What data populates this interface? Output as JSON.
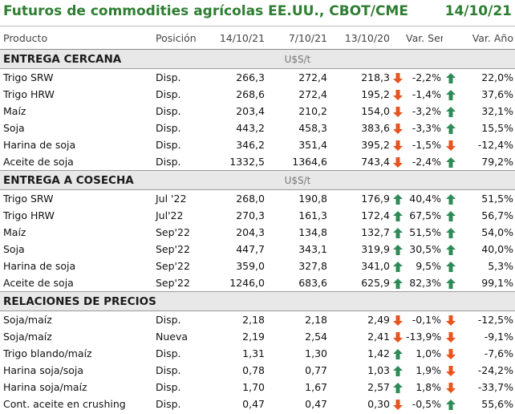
{
  "header": {
    "title": "Futuros de commodities agrícolas EE.UU., CBOT/CME",
    "date": "14/10/21"
  },
  "columns": [
    "Producto",
    "Posición",
    "14/10/21",
    "7/10/21",
    "13/10/20",
    "Var. Sem.",
    "Var. Año"
  ],
  "colors": {
    "up": "#2e8b57",
    "down": "#e8541e",
    "title": "#2e7d32"
  },
  "sections": [
    {
      "name": "ENTREGA CERCANA",
      "unit": "U$S/t",
      "rows": [
        {
          "product": "Trigo SRW",
          "position": "Disp.",
          "v1": "266,3",
          "v2": "272,4",
          "v3": "218,3",
          "a0": "down",
          "ws": "-2,2%",
          "a1": "up",
          "yr": "22,0%"
        },
        {
          "product": "Trigo HRW",
          "position": "Disp.",
          "v1": "268,6",
          "v2": "272,4",
          "v3": "195,2",
          "a0": "down",
          "ws": "-1,4%",
          "a1": "up",
          "yr": "37,6%"
        },
        {
          "product": "Maíz",
          "position": "Disp.",
          "v1": "203,4",
          "v2": "210,2",
          "v3": "154,0",
          "a0": "down",
          "ws": "-3,2%",
          "a1": "up",
          "yr": "32,1%"
        },
        {
          "product": "Soja",
          "position": "Disp.",
          "v1": "443,2",
          "v2": "458,3",
          "v3": "383,6",
          "a0": "down",
          "ws": "-3,3%",
          "a1": "up",
          "yr": "15,5%"
        },
        {
          "product": "Harina de soja",
          "position": "Disp.",
          "v1": "346,2",
          "v2": "351,4",
          "v3": "395,2",
          "a0": "down",
          "ws": "-1,5%",
          "a1": "down",
          "yr": "-12,4%"
        },
        {
          "product": "Aceite de soja",
          "position": "Disp.",
          "v1": "1332,5",
          "v2": "1364,6",
          "v3": "743,4",
          "a0": "down",
          "ws": "-2,4%",
          "a1": "up",
          "yr": "79,2%"
        }
      ]
    },
    {
      "name": "ENTREGA A COSECHA",
      "unit": "U$S/t",
      "rows": [
        {
          "product": "Trigo SRW",
          "position": "Jul '22",
          "v1": "268,0",
          "v2": "190,8",
          "v3": "176,9",
          "a0": "up",
          "ws": "40,4%",
          "a1": "up",
          "yr": "51,5%"
        },
        {
          "product": "Trigo HRW",
          "position": "Jul'22",
          "v1": "270,3",
          "v2": "161,3",
          "v3": "172,4",
          "a0": "up",
          "ws": "67,5%",
          "a1": "up",
          "yr": "56,7%"
        },
        {
          "product": "Maíz",
          "position": "Sep'22",
          "v1": "204,3",
          "v2": "134,8",
          "v3": "132,7",
          "a0": "up",
          "ws": "51,5%",
          "a1": "up",
          "yr": "54,0%"
        },
        {
          "product": "Soja",
          "position": "Sep'22",
          "v1": "447,7",
          "v2": "343,1",
          "v3": "319,9",
          "a0": "up",
          "ws": "30,5%",
          "a1": "up",
          "yr": "40,0%"
        },
        {
          "product": "Harina de soja",
          "position": "Sep'22",
          "v1": "359,0",
          "v2": "327,8",
          "v3": "341,0",
          "a0": "up",
          "ws": "9,5%",
          "a1": "up",
          "yr": "5,3%"
        },
        {
          "product": "Aceite de soja",
          "position": "Sep'22",
          "v1": "1246,0",
          "v2": "683,6",
          "v3": "625,9",
          "a0": "up",
          "ws": "82,3%",
          "a1": "up",
          "yr": "99,1%"
        }
      ]
    },
    {
      "name": "RELACIONES DE PRECIOS",
      "unit": "",
      "rows": [
        {
          "product": "Soja/maíz",
          "position": "Disp.",
          "v1": "2,18",
          "v2": "2,18",
          "v3": "2,49",
          "a0": "down",
          "ws": "-0,1%",
          "a1": "down",
          "yr": "-12,5%"
        },
        {
          "product": "Soja/maíz",
          "position": "Nueva",
          "v1": "2,19",
          "v2": "2,54",
          "v3": "2,41",
          "a0": "down",
          "ws": "-13,9%",
          "a1": "down",
          "yr": "-9,1%"
        },
        {
          "product": "Trigo blando/maíz",
          "position": "Disp.",
          "v1": "1,31",
          "v2": "1,30",
          "v3": "1,42",
          "a0": "up",
          "ws": "1,0%",
          "a1": "down",
          "yr": "-7,6%"
        },
        {
          "product": "Harina soja/soja",
          "position": "Disp.",
          "v1": "0,78",
          "v2": "0,77",
          "v3": "1,03",
          "a0": "up",
          "ws": "1,9%",
          "a1": "down",
          "yr": "-24,2%"
        },
        {
          "product": "Harina soja/maíz",
          "position": "Disp.",
          "v1": "1,70",
          "v2": "1,67",
          "v3": "2,57",
          "a0": "up",
          "ws": "1,8%",
          "a1": "down",
          "yr": "-33,7%"
        },
        {
          "product": "Cont. aceite en crushing",
          "position": "Disp.",
          "v1": "0,47",
          "v2": "0,47",
          "v3": "0,30",
          "a0": "down",
          "ws": "-0,5%",
          "a1": "up",
          "yr": "55,6%"
        }
      ]
    }
  ]
}
